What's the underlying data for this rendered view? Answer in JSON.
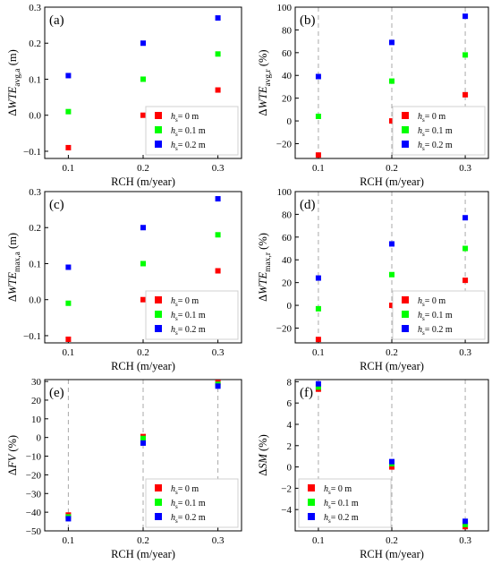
{
  "chart_data": [
    {
      "panel": "(a)",
      "type": "scatter",
      "ylabel": {
        "prefix": "Δ",
        "main": "WTE",
        "sub": "avg,a",
        "unit": " (m)"
      },
      "xlabel": "RCH (m/year)",
      "xticks": [
        "0.1",
        "0.2",
        "0.3"
      ],
      "yticks": [
        -0.1,
        0.0,
        0.1,
        0.2,
        0.3
      ],
      "ytick_labels": [
        "−0.1",
        "0.0",
        "0.1",
        "0.2",
        "0.3"
      ],
      "ylim": [
        -0.12,
        0.3
      ],
      "grid_x": false,
      "legend_position": "lower-right",
      "x": [
        0.1,
        0.2,
        0.3
      ],
      "series": [
        {
          "name": "= 0 m",
          "color": "#ff0000",
          "values": [
            -0.09,
            0.0,
            0.07
          ]
        },
        {
          "name": "= 0.1 m",
          "color": "#00ff00",
          "values": [
            0.01,
            0.1,
            0.17
          ]
        },
        {
          "name": "= 0.2 m",
          "color": "#0000ff",
          "values": [
            0.11,
            0.2,
            0.27
          ]
        }
      ]
    },
    {
      "panel": "(b)",
      "type": "scatter",
      "ylabel": {
        "prefix": "Δ",
        "main": "WTE",
        "sub": "avg,r",
        "unit": " (%)"
      },
      "xlabel": "RCH (m/year)",
      "xticks": [
        "0.1",
        "0.2",
        "0.3"
      ],
      "yticks": [
        -20,
        0,
        20,
        40,
        60,
        80,
        100
      ],
      "ytick_labels": [
        "−20",
        "0",
        "20",
        "40",
        "60",
        "80",
        "100"
      ],
      "ylim": [
        -33,
        100
      ],
      "grid_x": true,
      "legend_position": "lower-right",
      "x": [
        0.1,
        0.2,
        0.3
      ],
      "series": [
        {
          "name": "= 0 m",
          "color": "#ff0000",
          "values": [
            -30,
            0,
            23
          ]
        },
        {
          "name": "= 0.1 m",
          "color": "#00ff00",
          "values": [
            4,
            35,
            58
          ]
        },
        {
          "name": "= 0.2 m",
          "color": "#0000ff",
          "values": [
            39,
            69,
            92
          ]
        }
      ]
    },
    {
      "panel": "(c)",
      "type": "scatter",
      "ylabel": {
        "prefix": "Δ",
        "main": "WTE",
        "sub": "max,a",
        "unit": " (m)"
      },
      "xlabel": "RCH (m/year)",
      "xticks": [
        "0.1",
        "0.2",
        "0.3"
      ],
      "yticks": [
        -0.1,
        0.0,
        0.1,
        0.2,
        0.3
      ],
      "ytick_labels": [
        "−0.1",
        "0.0",
        "0.1",
        "0.2",
        "0.3"
      ],
      "ylim": [
        -0.12,
        0.3
      ],
      "grid_x": false,
      "legend_position": "lower-right",
      "x": [
        0.1,
        0.2,
        0.3
      ],
      "series": [
        {
          "name": "= 0 m",
          "color": "#ff0000",
          "values": [
            -0.11,
            0.0,
            0.08
          ]
        },
        {
          "name": "= 0.1 m",
          "color": "#00ff00",
          "values": [
            -0.01,
            0.1,
            0.18
          ]
        },
        {
          "name": "= 0.2 m",
          "color": "#0000ff",
          "values": [
            0.09,
            0.2,
            0.28
          ]
        }
      ]
    },
    {
      "panel": "(d)",
      "type": "scatter",
      "ylabel": {
        "prefix": "Δ",
        "main": "WTE",
        "sub": "max,r",
        "unit": " (%)"
      },
      "xlabel": "RCH (m/year)",
      "xticks": [
        "0.1",
        "0.2",
        "0.3"
      ],
      "yticks": [
        -20,
        0,
        20,
        40,
        60,
        80,
        100
      ],
      "ytick_labels": [
        "−20",
        "0",
        "20",
        "40",
        "60",
        "80",
        "100"
      ],
      "ylim": [
        -33,
        100
      ],
      "grid_x": true,
      "legend_position": "lower-right",
      "x": [
        0.1,
        0.2,
        0.3
      ],
      "series": [
        {
          "name": "= 0 m",
          "color": "#ff0000",
          "values": [
            -30,
            0,
            22
          ]
        },
        {
          "name": "= 0.1 m",
          "color": "#00ff00",
          "values": [
            -3,
            27,
            50
          ]
        },
        {
          "name": "= 0.2 m",
          "color": "#0000ff",
          "values": [
            24,
            54,
            77
          ]
        }
      ]
    },
    {
      "panel": "(e)",
      "type": "scatter",
      "ylabel": {
        "prefix": "Δ",
        "main": "FV",
        "sub": "",
        "unit": " (%)"
      },
      "xlabel": "RCH (m/year)",
      "xticks": [
        "0.1",
        "0.2",
        "0.3"
      ],
      "yticks": [
        -50,
        -40,
        -30,
        -20,
        -10,
        0,
        10,
        20,
        30
      ],
      "ytick_labels": [
        "−50",
        "−40",
        "−30",
        "−20",
        "−10",
        "0",
        "10",
        "20",
        "30"
      ],
      "ylim": [
        -50,
        31
      ],
      "grid_x": true,
      "legend_position": "lower-right",
      "x": [
        0.1,
        0.2,
        0.3
      ],
      "series": [
        {
          "name": "= 0 m",
          "color": "#ff0000",
          "values": [
            -41.5,
            0.5,
            29.5
          ]
        },
        {
          "name": "= 0.1 m",
          "color": "#00ff00",
          "values": [
            -42.5,
            -0.5,
            28.5
          ]
        },
        {
          "name": "= 0.2 m",
          "color": "#0000ff",
          "values": [
            -43.5,
            -3,
            27.5
          ]
        }
      ]
    },
    {
      "panel": "(f)",
      "type": "scatter",
      "ylabel": {
        "prefix": "Δ",
        "main": "SM",
        "sub": "",
        "unit": " (%)"
      },
      "xlabel": "RCH (m/year)",
      "xticks": [
        "0.1",
        "0.2",
        "0.3"
      ],
      "yticks": [
        -4,
        -2,
        0,
        2,
        4,
        6,
        8
      ],
      "ytick_labels": [
        "−4",
        "−2",
        "0",
        "2",
        "4",
        "6",
        "8"
      ],
      "ylim": [
        -6,
        8.2
      ],
      "grid_x": true,
      "legend_position": "lower-left",
      "x": [
        0.1,
        0.2,
        0.3
      ],
      "series": [
        {
          "name": "= 0 m",
          "color": "#ff0000",
          "values": [
            7.3,
            0.0,
            -5.6
          ]
        },
        {
          "name": "= 0.1 m",
          "color": "#00ff00",
          "values": [
            7.5,
            0.3,
            -5.4
          ]
        },
        {
          "name": "= 0.2 m",
          "color": "#0000ff",
          "values": [
            7.8,
            0.5,
            -5.1
          ]
        }
      ]
    }
  ],
  "legend_symbol": {
    "main": "h",
    "sub": "s"
  }
}
